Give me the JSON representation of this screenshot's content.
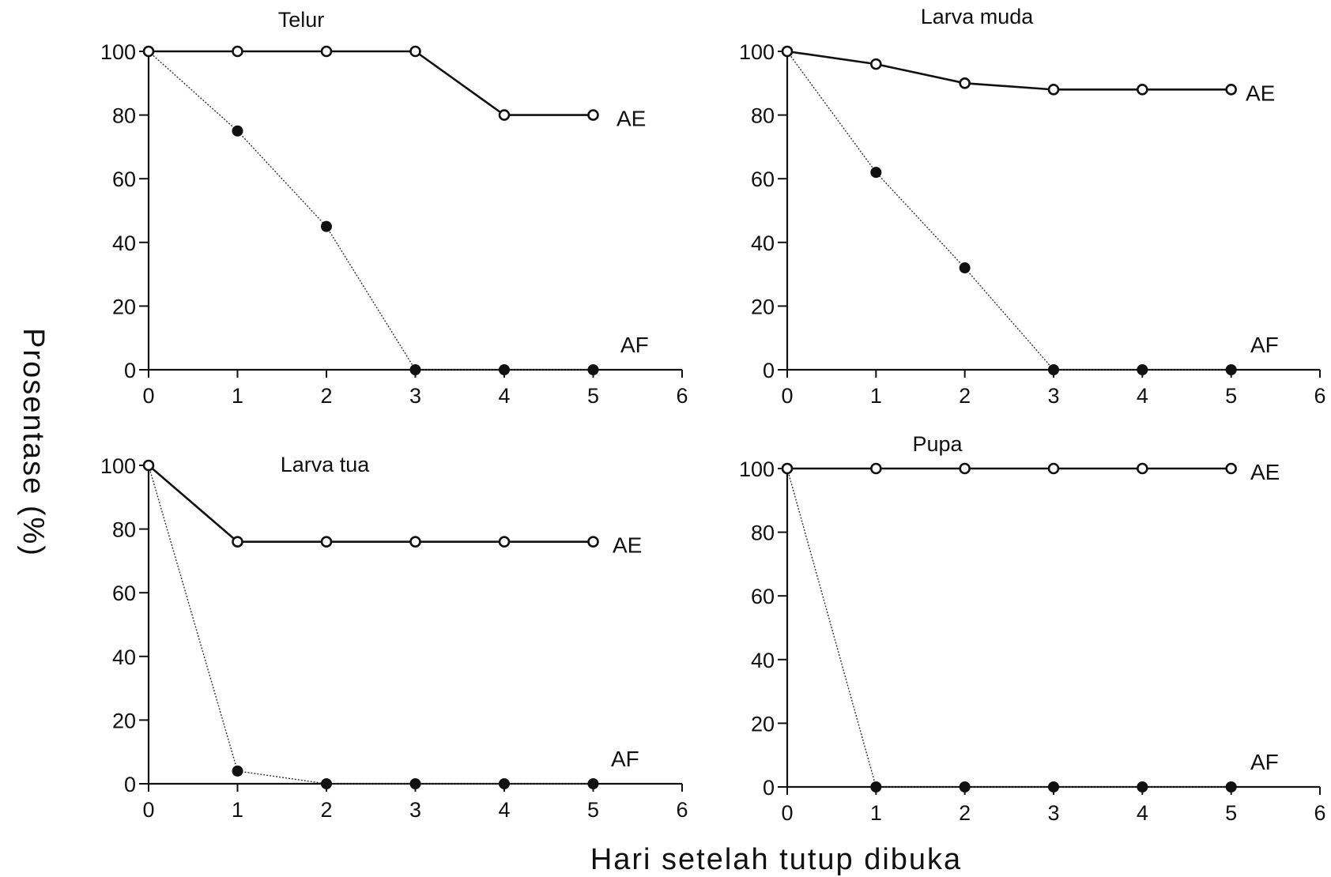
{
  "ylabel": "Prosentase (%)",
  "xlabel": "Hari setelah tutup dibuka",
  "chart_data": [
    {
      "type": "line",
      "title": "Telur",
      "x": [
        0,
        1,
        2,
        3,
        4,
        5
      ],
      "xlim": [
        0,
        6
      ],
      "ylim": [
        0,
        100
      ],
      "xticks": [
        "0",
        "1",
        "2",
        "3",
        "4",
        "5",
        "6"
      ],
      "yticks": [
        "0",
        "20",
        "40",
        "60",
        "80",
        "100"
      ],
      "series": [
        {
          "name": "AE",
          "marker": "open-circle",
          "line": "solid",
          "values": [
            100,
            100,
            100,
            100,
            80,
            80
          ]
        },
        {
          "name": "AF",
          "marker": "filled-circle",
          "line": "dotted",
          "values": [
            100,
            75,
            45,
            0,
            0,
            0
          ]
        }
      ]
    },
    {
      "type": "line",
      "title": "Larva muda",
      "x": [
        0,
        1,
        2,
        3,
        4,
        5
      ],
      "xlim": [
        0,
        6
      ],
      "ylim": [
        0,
        100
      ],
      "xticks": [
        "0",
        "1",
        "2",
        "3",
        "4",
        "5",
        "6"
      ],
      "yticks": [
        "0",
        "20",
        "40",
        "60",
        "80",
        "100"
      ],
      "series": [
        {
          "name": "AE",
          "marker": "open-circle",
          "line": "solid",
          "values": [
            100,
            96,
            90,
            88,
            88,
            88
          ]
        },
        {
          "name": "AF",
          "marker": "filled-circle",
          "line": "dotted",
          "values": [
            100,
            62,
            32,
            0,
            0,
            0
          ]
        }
      ]
    },
    {
      "type": "line",
      "title": "Larva tua",
      "x": [
        0,
        1,
        2,
        3,
        4,
        5
      ],
      "xlim": [
        0,
        6
      ],
      "ylim": [
        0,
        100
      ],
      "xticks": [
        "0",
        "1",
        "2",
        "3",
        "4",
        "5",
        "6"
      ],
      "yticks": [
        "0",
        "20",
        "40",
        "60",
        "80",
        "100"
      ],
      "series": [
        {
          "name": "AE",
          "marker": "open-circle",
          "line": "solid",
          "values": [
            100,
            76,
            76,
            76,
            76,
            76
          ]
        },
        {
          "name": "AF",
          "marker": "filled-circle",
          "line": "dotted",
          "values": [
            100,
            4,
            0,
            0,
            0,
            0
          ]
        }
      ]
    },
    {
      "type": "line",
      "title": "Pupa",
      "x": [
        0,
        1,
        2,
        3,
        4,
        5
      ],
      "xlim": [
        0,
        6
      ],
      "ylim": [
        0,
        100
      ],
      "xticks": [
        "0",
        "1",
        "2",
        "3",
        "4",
        "5",
        "6"
      ],
      "yticks": [
        "0",
        "20",
        "40",
        "60",
        "80",
        "100"
      ],
      "series": [
        {
          "name": "AE",
          "marker": "open-circle",
          "line": "solid",
          "values": [
            100,
            100,
            100,
            100,
            100,
            100
          ]
        },
        {
          "name": "AF",
          "marker": "filled-circle",
          "line": "dotted",
          "values": [
            100,
            0,
            0,
            0,
            0,
            0
          ]
        }
      ]
    }
  ]
}
